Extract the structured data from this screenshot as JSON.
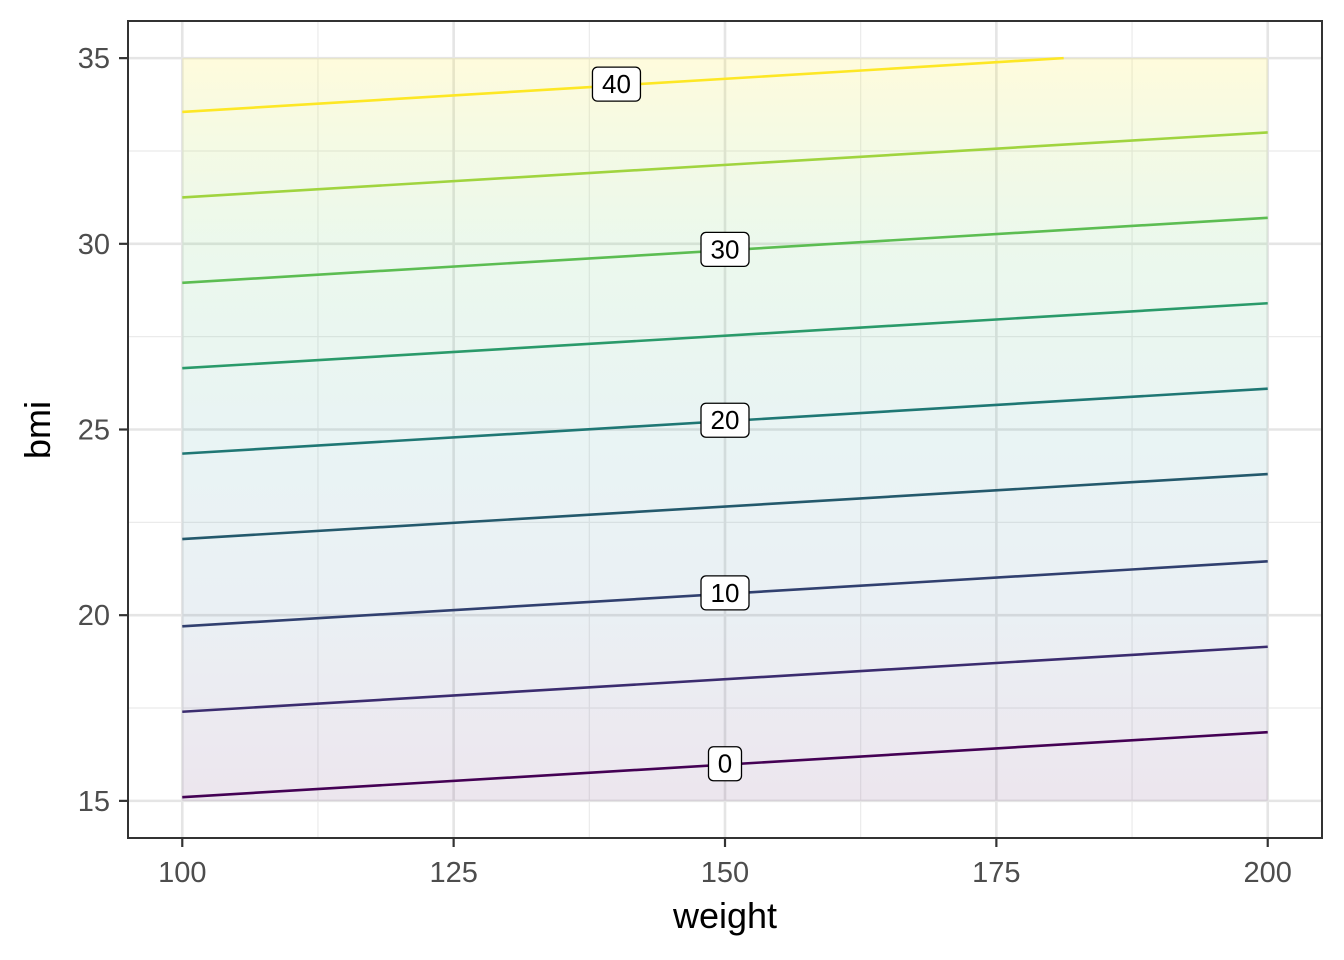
{
  "chart_data": {
    "type": "contour",
    "xlabel": "weight",
    "ylabel": "bmi",
    "xlim": [
      95,
      205
    ],
    "ylim": [
      14,
      36
    ],
    "x_ticks": [
      100,
      125,
      150,
      175,
      200
    ],
    "y_ticks": [
      15,
      20,
      25,
      30,
      35
    ],
    "x_tick_labels": [
      "100",
      "125",
      "150",
      "175",
      "200"
    ],
    "y_tick_labels": [
      "15",
      "20",
      "25",
      "30",
      "35"
    ],
    "x_minor_ticks": [
      112.5,
      137.5,
      162.5,
      187.5
    ],
    "y_minor_ticks": [
      17.5,
      22.5,
      27.5,
      32.5
    ],
    "grid": true,
    "fill_region": {
      "x": [
        100,
        200
      ],
      "y": [
        15,
        35
      ]
    },
    "fill_gradient": [
      "#440154",
      "#fde725"
    ],
    "contours": [
      {
        "level": 0,
        "color": "#440154",
        "x": [
          100,
          200
        ],
        "y": [
          15.1,
          16.85
        ]
      },
      {
        "level": 5,
        "color": "#3b2c6f",
        "x": [
          100,
          200
        ],
        "y": [
          17.4,
          19.15
        ]
      },
      {
        "level": 10,
        "color": "#31406f",
        "x": [
          100,
          200
        ],
        "y": [
          19.7,
          21.45
        ]
      },
      {
        "level": 15,
        "color": "#24596c",
        "x": [
          100,
          200
        ],
        "y": [
          22.05,
          23.8
        ]
      },
      {
        "level": 20,
        "color": "#1f7774",
        "x": [
          100,
          200
        ],
        "y": [
          24.35,
          26.1
        ]
      },
      {
        "level": 25,
        "color": "#2a9a6a",
        "x": [
          100,
          200
        ],
        "y": [
          26.65,
          28.4
        ]
      },
      {
        "level": 30,
        "color": "#5cbd52",
        "x": [
          100,
          200
        ],
        "y": [
          28.95,
          30.7
        ]
      },
      {
        "level": 35,
        "color": "#a0d43f",
        "x": [
          100,
          200
        ],
        "y": [
          31.25,
          33.0
        ]
      },
      {
        "level": 40,
        "color": "#fde725",
        "x": [
          100,
          181.2
        ],
        "y": [
          33.55,
          35.0
        ]
      }
    ],
    "contour_labels": [
      {
        "text": "0",
        "x": 150,
        "y": 16.0
      },
      {
        "text": "10",
        "x": 150,
        "y": 20.6
      },
      {
        "text": "20",
        "x": 150,
        "y": 25.25
      },
      {
        "text": "30",
        "x": 150,
        "y": 29.85
      },
      {
        "text": "40",
        "x": 140,
        "y": 34.3
      }
    ]
  }
}
